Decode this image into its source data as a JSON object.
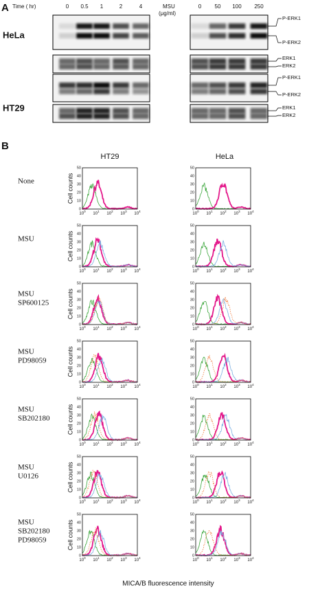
{
  "panel_a": {
    "label": "A",
    "time_header": "Time ( hr)",
    "time_points": [
      "0",
      "0.5",
      "1",
      "2",
      "4"
    ],
    "dose_header": [
      "MSU",
      "(μg/ml)"
    ],
    "doses": [
      "0",
      "50",
      "100",
      "250"
    ],
    "cell_lines": [
      "HeLa",
      "HT29"
    ],
    "perk_bands": [
      "P-ERK1",
      "P-ERK2"
    ],
    "erk_bands": [
      "ERK1",
      "ERK2"
    ]
  },
  "panel_b": {
    "label": "B",
    "columns": [
      "HT29",
      "HeLa"
    ],
    "rows": [
      [
        "None"
      ],
      [
        "MSU"
      ],
      [
        "MSU",
        "SP600125"
      ],
      [
        "MSU",
        "PD98059"
      ],
      [
        "MSU",
        "SB202180"
      ],
      [
        "MSU",
        "U0126"
      ],
      [
        "MSU",
        "SB202180",
        "PD98059"
      ]
    ],
    "y_axis_label": "Cell counts",
    "yticks": [
      "0",
      "10",
      "20",
      "30",
      "40",
      "50"
    ],
    "xtick_base": "10",
    "xtick_exponents": [
      "0",
      "1",
      "2",
      "3",
      "4"
    ],
    "x_axis_label": "MICA/B fluorescence intensity"
  }
}
